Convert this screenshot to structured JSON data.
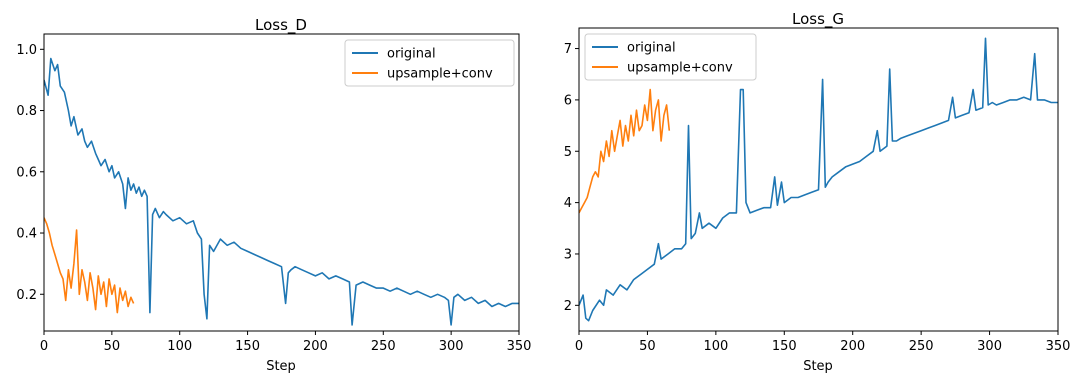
{
  "chart_data": [
    {
      "type": "line",
      "title": "Loss_D",
      "xlabel": "Step",
      "ylabel": "",
      "xlim": [
        0,
        350
      ],
      "ylim": [
        0.08,
        1.05
      ],
      "xticks": [
        "0",
        "50",
        "100",
        "150",
        "200",
        "250",
        "300",
        "350"
      ],
      "yticks": [
        "0.2",
        "0.4",
        "0.6",
        "0.8",
        "1.0"
      ],
      "legend_position": "top-right",
      "series": [
        {
          "name": "original",
          "color": "#1f77b4",
          "x": [
            0,
            3,
            5,
            8,
            10,
            12,
            15,
            18,
            20,
            22,
            25,
            28,
            30,
            32,
            35,
            38,
            40,
            42,
            45,
            48,
            50,
            52,
            55,
            58,
            60,
            62,
            64,
            66,
            68,
            70,
            72,
            74,
            76,
            78,
            80,
            82,
            85,
            88,
            90,
            95,
            100,
            105,
            110,
            113,
            116,
            118,
            120,
            122,
            125,
            130,
            135,
            140,
            145,
            150,
            155,
            160,
            165,
            170,
            175,
            178,
            180,
            182,
            185,
            190,
            195,
            200,
            205,
            210,
            215,
            220,
            225,
            227,
            230,
            235,
            240,
            245,
            250,
            255,
            260,
            265,
            270,
            275,
            280,
            285,
            290,
            295,
            298,
            300,
            302,
            305,
            310,
            315,
            320,
            325,
            330,
            335,
            340,
            345,
            350
          ],
          "y": [
            0.9,
            0.85,
            0.97,
            0.93,
            0.95,
            0.88,
            0.86,
            0.8,
            0.75,
            0.78,
            0.72,
            0.74,
            0.7,
            0.68,
            0.7,
            0.66,
            0.64,
            0.62,
            0.64,
            0.6,
            0.62,
            0.58,
            0.6,
            0.56,
            0.48,
            0.58,
            0.54,
            0.56,
            0.53,
            0.55,
            0.52,
            0.54,
            0.52,
            0.14,
            0.46,
            0.48,
            0.45,
            0.47,
            0.46,
            0.44,
            0.45,
            0.43,
            0.44,
            0.4,
            0.38,
            0.2,
            0.12,
            0.36,
            0.34,
            0.38,
            0.36,
            0.37,
            0.35,
            0.34,
            0.33,
            0.32,
            0.31,
            0.3,
            0.29,
            0.17,
            0.27,
            0.28,
            0.29,
            0.28,
            0.27,
            0.26,
            0.27,
            0.25,
            0.26,
            0.25,
            0.24,
            0.1,
            0.23,
            0.24,
            0.23,
            0.22,
            0.22,
            0.21,
            0.22,
            0.21,
            0.2,
            0.21,
            0.2,
            0.19,
            0.2,
            0.19,
            0.18,
            0.1,
            0.19,
            0.2,
            0.18,
            0.19,
            0.17,
            0.18,
            0.16,
            0.17,
            0.16,
            0.17,
            0.17
          ]
        },
        {
          "name": "upsample+conv",
          "color": "#ff7f0e",
          "x": [
            0,
            2,
            4,
            6,
            8,
            10,
            12,
            14,
            16,
            18,
            20,
            22,
            24,
            26,
            28,
            30,
            32,
            34,
            36,
            38,
            40,
            42,
            44,
            46,
            48,
            50,
            52,
            54,
            56,
            58,
            60,
            62,
            64,
            66
          ],
          "y": [
            0.45,
            0.43,
            0.4,
            0.36,
            0.33,
            0.3,
            0.27,
            0.25,
            0.18,
            0.28,
            0.22,
            0.3,
            0.41,
            0.2,
            0.28,
            0.24,
            0.18,
            0.27,
            0.22,
            0.15,
            0.26,
            0.2,
            0.24,
            0.16,
            0.25,
            0.2,
            0.23,
            0.14,
            0.22,
            0.18,
            0.21,
            0.16,
            0.19,
            0.17
          ]
        }
      ]
    },
    {
      "type": "line",
      "title": "Loss_G",
      "xlabel": "Step",
      "ylabel": "",
      "xlim": [
        0,
        350
      ],
      "ylim": [
        1.5,
        7.4
      ],
      "xticks": [
        "0",
        "50",
        "100",
        "150",
        "200",
        "250",
        "300",
        "350"
      ],
      "yticks": [
        "2",
        "3",
        "4",
        "5",
        "6",
        "7"
      ],
      "legend_position": "top-left",
      "series": [
        {
          "name": "original",
          "color": "#1f77b4",
          "x": [
            0,
            3,
            5,
            7,
            10,
            15,
            18,
            20,
            25,
            30,
            35,
            40,
            45,
            50,
            55,
            58,
            60,
            65,
            70,
            75,
            78,
            80,
            82,
            85,
            88,
            90,
            95,
            100,
            105,
            110,
            115,
            118,
            120,
            122,
            125,
            130,
            135,
            140,
            143,
            145,
            148,
            150,
            155,
            160,
            165,
            170,
            175,
            178,
            180,
            182,
            185,
            190,
            195,
            200,
            205,
            210,
            215,
            218,
            220,
            225,
            227,
            229,
            232,
            235,
            240,
            245,
            250,
            255,
            260,
            265,
            270,
            273,
            275,
            280,
            285,
            288,
            290,
            295,
            297,
            299,
            302,
            305,
            310,
            315,
            320,
            325,
            330,
            333,
            335,
            340,
            345,
            350
          ],
          "y": [
            2.0,
            2.2,
            1.75,
            1.7,
            1.9,
            2.1,
            2.0,
            2.3,
            2.2,
            2.4,
            2.3,
            2.5,
            2.6,
            2.7,
            2.8,
            3.2,
            2.9,
            3.0,
            3.1,
            3.1,
            3.2,
            5.5,
            3.3,
            3.4,
            3.8,
            3.5,
            3.6,
            3.5,
            3.7,
            3.8,
            3.8,
            6.2,
            6.2,
            4.0,
            3.8,
            3.85,
            3.9,
            3.9,
            4.5,
            3.95,
            4.4,
            4.0,
            4.1,
            4.1,
            4.15,
            4.2,
            4.25,
            6.4,
            4.3,
            4.4,
            4.5,
            4.6,
            4.7,
            4.75,
            4.8,
            4.9,
            5.0,
            5.4,
            5.0,
            5.1,
            6.6,
            5.2,
            5.2,
            5.25,
            5.3,
            5.35,
            5.4,
            5.45,
            5.5,
            5.55,
            5.6,
            6.05,
            5.65,
            5.7,
            5.75,
            6.2,
            5.8,
            5.85,
            7.2,
            5.9,
            5.95,
            5.9,
            5.95,
            6.0,
            6.0,
            6.05,
            6.0,
            6.9,
            6.0,
            6.0,
            5.95,
            5.95
          ]
        },
        {
          "name": "upsample+conv",
          "color": "#ff7f0e",
          "x": [
            0,
            2,
            4,
            6,
            8,
            10,
            12,
            14,
            16,
            18,
            20,
            22,
            24,
            26,
            28,
            30,
            32,
            34,
            36,
            38,
            40,
            42,
            44,
            46,
            48,
            50,
            52,
            54,
            56,
            58,
            60,
            62,
            64,
            66
          ],
          "y": [
            3.8,
            3.9,
            4.0,
            4.1,
            4.3,
            4.5,
            4.6,
            4.5,
            5.0,
            4.8,
            5.2,
            4.9,
            5.4,
            5.0,
            5.3,
            5.6,
            5.1,
            5.5,
            5.2,
            5.7,
            5.3,
            5.8,
            5.4,
            5.5,
            5.9,
            5.6,
            6.2,
            5.4,
            5.8,
            6.0,
            5.2,
            5.7,
            5.9,
            5.4
          ]
        }
      ]
    }
  ]
}
